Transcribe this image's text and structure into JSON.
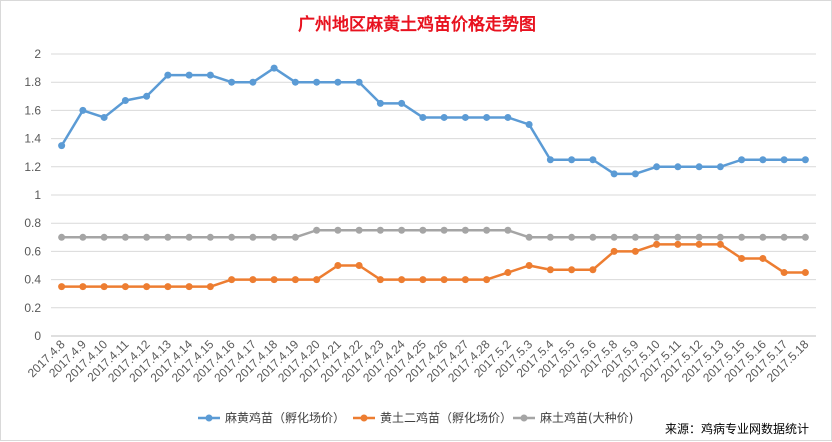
{
  "source_note": "来源：鸡病专业网数据统计",
  "chart_data": {
    "type": "line",
    "title": "广州地区麻黄土鸡苗价格走势图",
    "xlabel": "",
    "ylabel": "",
    "ylim": [
      0,
      2
    ],
    "yticks": [
      "0",
      "0.2",
      "0.4",
      "0.6",
      "0.8",
      "1",
      "1.2",
      "1.4",
      "1.6",
      "1.8",
      "2"
    ],
    "grid": true,
    "legend_position": "bottom",
    "categories": [
      "2017.4.8",
      "2017.4.9",
      "2017.4.10",
      "2017.4.11",
      "2017.4.12",
      "2017.4.13",
      "2017.4.14",
      "2017.4.15",
      "2017.4.16",
      "2017.4.17",
      "2017.4.18",
      "2017.4.19",
      "2017.4.20",
      "2017.4.21",
      "2017.4.22",
      "2017.4.23",
      "2017.4.24",
      "2017.4.25",
      "2017.4.26",
      "2017.4.27",
      "2017.4.28",
      "2017.5.2",
      "2017.5.3",
      "2017.5.4",
      "2017.5.5",
      "2017.5.6",
      "2017.5.8",
      "2017.5.9",
      "2017.5.10",
      "2017.5.11",
      "2017.5.12",
      "2017.5.13",
      "2017.5.15",
      "2017.5.16",
      "2017.5.17",
      "2017.5.18"
    ],
    "series": [
      {
        "name": "麻黄鸡苗（孵化场价）",
        "color": "#5b9bd5",
        "values": [
          1.35,
          1.6,
          1.55,
          1.67,
          1.7,
          1.85,
          1.85,
          1.85,
          1.8,
          1.8,
          1.9,
          1.8,
          1.8,
          1.8,
          1.8,
          1.65,
          1.65,
          1.55,
          1.55,
          1.55,
          1.55,
          1.55,
          1.5,
          1.25,
          1.25,
          1.25,
          1.15,
          1.15,
          1.2,
          1.2,
          1.2,
          1.2,
          1.25,
          1.25,
          1.25,
          1.25
        ]
      },
      {
        "name": "黄土二鸡苗（孵化场价）",
        "color": "#ed7d31",
        "values": [
          0.35,
          0.35,
          0.35,
          0.35,
          0.35,
          0.35,
          0.35,
          0.35,
          0.4,
          0.4,
          0.4,
          0.4,
          0.4,
          0.5,
          0.5,
          0.4,
          0.4,
          0.4,
          0.4,
          0.4,
          0.4,
          0.45,
          0.5,
          0.47,
          0.47,
          0.47,
          0.6,
          0.6,
          0.65,
          0.65,
          0.65,
          0.65,
          0.55,
          0.55,
          0.45,
          0.45
        ]
      },
      {
        "name": "麻土鸡苗(大种价)",
        "color": "#a5a5a5",
        "values": [
          0.7,
          0.7,
          0.7,
          0.7,
          0.7,
          0.7,
          0.7,
          0.7,
          0.7,
          0.7,
          0.7,
          0.7,
          0.75,
          0.75,
          0.75,
          0.75,
          0.75,
          0.75,
          0.75,
          0.75,
          0.75,
          0.75,
          0.7,
          0.7,
          0.7,
          0.7,
          0.7,
          0.7,
          0.7,
          0.7,
          0.7,
          0.7,
          0.7,
          0.7,
          0.7,
          0.7
        ]
      }
    ]
  }
}
